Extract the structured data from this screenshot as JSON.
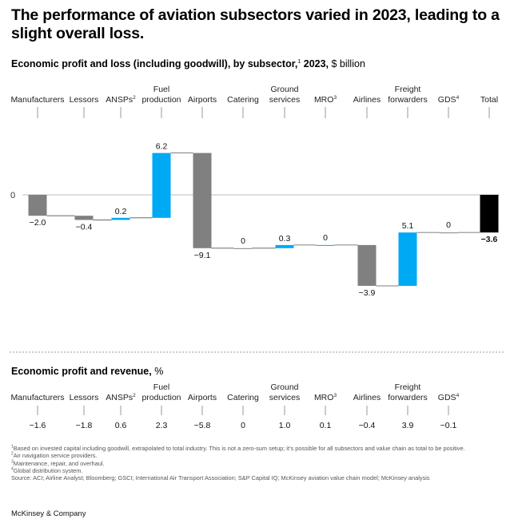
{
  "title": "The performance of aviation subsectors varied in 2023, leading to a slight overall loss.",
  "subtitle": {
    "bold": "Economic profit and loss (including goodwill), by subsector,",
    "sup": "1",
    "bold2": " 2023,",
    "unit": " $ billion"
  },
  "section2": {
    "bold": "Economic profit and revenue,",
    "unit": " %"
  },
  "zero_label": "0",
  "colors": {
    "gray": "#808080",
    "blue": "#00A9F4",
    "black": "#000000"
  },
  "chart_data": [
    {
      "type": "bar",
      "subtype": "waterfall",
      "title": "Economic profit and loss (including goodwill), by subsector, 2023, $ billion",
      "categories": [
        {
          "name": "Manufacturers",
          "lines": [
            "Manufacturers"
          ],
          "sup": ""
        },
        {
          "name": "Lessors",
          "lines": [
            "Lessors"
          ],
          "sup": ""
        },
        {
          "name": "ANSPs",
          "lines": [
            "ANSPs"
          ],
          "sup": "2"
        },
        {
          "name": "Fuel production",
          "lines": [
            "Fuel",
            "production"
          ],
          "sup": ""
        },
        {
          "name": "Airports",
          "lines": [
            "Airports"
          ],
          "sup": ""
        },
        {
          "name": "Catering",
          "lines": [
            "Catering"
          ],
          "sup": ""
        },
        {
          "name": "Ground services",
          "lines": [
            "Ground",
            "services"
          ],
          "sup": ""
        },
        {
          "name": "MRO",
          "lines": [
            "MRO"
          ],
          "sup": "3"
        },
        {
          "name": "Airlines",
          "lines": [
            "Airlines"
          ],
          "sup": ""
        },
        {
          "name": "Freight forwarders",
          "lines": [
            "Freight",
            "forwarders"
          ],
          "sup": ""
        },
        {
          "name": "GDS",
          "lines": [
            "GDS"
          ],
          "sup": "4"
        },
        {
          "name": "Total",
          "lines": [
            "Total"
          ],
          "sup": ""
        }
      ],
      "values": [
        -2.0,
        -0.4,
        0.2,
        6.2,
        -9.1,
        0,
        0.3,
        0,
        -3.9,
        5.1,
        0,
        -3.6
      ],
      "labels": [
        "−2.0",
        "−0.4",
        "0.2",
        "6.2",
        "−9.1",
        "0",
        "0.3",
        "0",
        "−3.9",
        "5.1",
        "0",
        "−3.6"
      ],
      "colors": [
        "gray",
        "gray",
        "blue",
        "blue",
        "gray",
        "gray",
        "blue",
        "blue",
        "gray",
        "blue",
        "gray",
        "black"
      ],
      "total_index": 11,
      "unit": "$ billion"
    },
    {
      "type": "table",
      "title": "Economic profit and revenue, %",
      "categories": [
        "Manufacturers",
        "Lessors",
        "ANSPs",
        "Fuel production",
        "Airports",
        "Catering",
        "Ground services",
        "MRO",
        "Airlines",
        "Freight forwarders",
        "GDS"
      ],
      "values": [
        -1.6,
        -1.8,
        0.6,
        2.3,
        -5.8,
        0,
        1.0,
        0.1,
        -0.4,
        3.9,
        -0.1
      ],
      "labels": [
        "−1.6",
        "−1.8",
        "0.6",
        "2.3",
        "−5.8",
        "0",
        "1.0",
        "0.1",
        "−0.4",
        "3.9",
        "−0.1"
      ],
      "unit": "%"
    }
  ],
  "footnotes": [
    {
      "sup": "1",
      "text": "Based on invested capital including goodwill, extrapolated to total industry. This is not a zero-sum setup; it’s possible for all subsectors and value chain as total to be positive."
    },
    {
      "sup": "2",
      "text": "Air navigation service providers."
    },
    {
      "sup": "3",
      "text": "Maintenance, repair, and overhaul."
    },
    {
      "sup": "4",
      "text": "Global distribution system."
    },
    {
      "sup": "",
      "text": "Source: ACI; Airline Analyst; Bloomberg; GSCI; International Air Transport Association; S&P Capital IQ; McKinsey aviation value chain model; McKinsey analysis"
    }
  ],
  "brand": "McKinsey & Company"
}
